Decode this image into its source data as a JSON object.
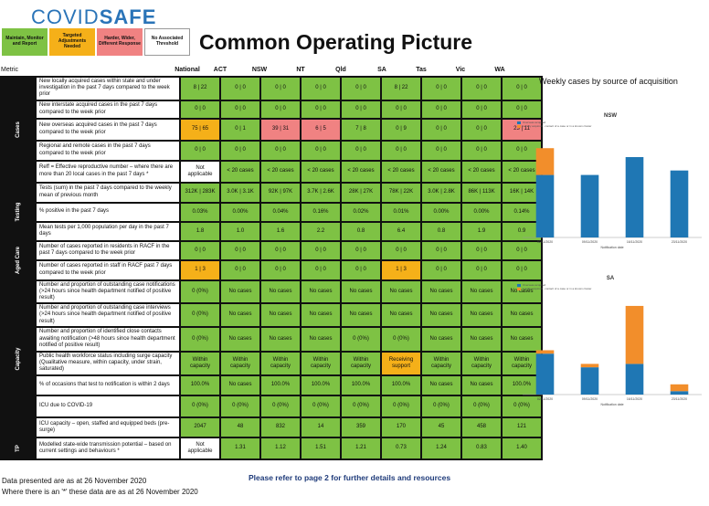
{
  "logo": {
    "part1": "COVID",
    "part2": "SAFE"
  },
  "legend": {
    "l1": "Maintain, Monitor and Report",
    "l2": "Targeted Adjustments Needed",
    "l3": "Harder, Wider, Different Response",
    "l4": "No Associated Threshold"
  },
  "title": "Common Operating Picture",
  "metric_header": "Metric",
  "columns": [
    "National",
    "ACT",
    "NSW",
    "NT",
    "Qld",
    "SA",
    "Tas",
    "Vic",
    "WA"
  ],
  "sections": {
    "cases": "Cases",
    "testing": "Testing",
    "aged": "Aged Care",
    "capacity": "Capacity",
    "tp": "TP"
  },
  "rows": [
    {
      "desc": "New locally acquired cases within state and under investigation in the past 7 days compared to the week prior",
      "vals": [
        "8 | 22",
        "0 | 0",
        "0 | 0",
        "0 | 0",
        "0 | 0",
        "8 | 22",
        "0 | 0",
        "0 | 0",
        "0 | 0"
      ]
    },
    {
      "desc": "New interstate acquired cases in the past 7 days compared to the week prior",
      "vals": [
        "0 | 0",
        "0 | 0",
        "0 | 0",
        "0 | 0",
        "0 | 0",
        "0 | 0",
        "0 | 0",
        "0 | 0",
        "0 | 0"
      ]
    },
    {
      "desc": "New overseas acquired cases in the past 7 days compared to the week prior",
      "vals": [
        "75 | 65",
        "0 | 1",
        "39 | 31",
        "6 | 5",
        "7 | 8",
        "0 | 9",
        "0 | 0",
        "0 | 0",
        "23 | 11"
      ]
    },
    {
      "desc": "Regional and remote cases in the past 7 days compared to the week prior",
      "vals": [
        "0 | 0",
        "0 | 0",
        "0 | 0",
        "0 | 0",
        "0 | 0",
        "0 | 0",
        "0 | 0",
        "0 | 0",
        "0 | 0"
      ]
    },
    {
      "desc": "Reff = Effective reproductive number – where there are more than 20 local cases in the past 7 days *",
      "vals": [
        "Not applicable",
        "< 20 cases",
        "< 20 cases",
        "< 20 cases",
        "< 20 cases",
        "< 20 cases",
        "< 20 cases",
        "< 20 cases",
        "< 20 cases"
      ]
    },
    {
      "desc": "Tests (sum) in the past 7 days compared to the weekly mean of previous month",
      "vals": [
        "312K | 283K",
        "3.0K | 3.1K",
        "92K | 97K",
        "3.7K | 2.6K",
        "28K | 27K",
        "78K | 22K",
        "3.0K | 2.8K",
        "86K | 113K",
        "16K | 14K"
      ]
    },
    {
      "desc": "% positive in the past 7 days",
      "vals": [
        "0.03%",
        "0.00%",
        "0.04%",
        "0.16%",
        "0.02%",
        "0.01%",
        "0.00%",
        "0.00%",
        "0.14%"
      ]
    },
    {
      "desc": "Mean tests per 1,000 population per day in the past 7 days",
      "vals": [
        "1.8",
        "1.0",
        "1.6",
        "2.2",
        "0.8",
        "6.4",
        "0.8",
        "1.9",
        "0.9"
      ]
    },
    {
      "desc": "Number of cases reported in residents in RACF in the past 7 days compared to the week prior",
      "vals": [
        "0 | 0",
        "0 | 0",
        "0 | 0",
        "0 | 0",
        "0 | 0",
        "0 | 0",
        "0 | 0",
        "0 | 0",
        "0 | 0"
      ]
    },
    {
      "desc": "Number of cases reported in staff in RACF past 7 days compared to the week prior",
      "vals": [
        "1 | 3",
        "0 | 0",
        "0 | 0",
        "0 | 0",
        "0 | 0",
        "1 | 3",
        "0 | 0",
        "0 | 0",
        "0 | 0"
      ]
    },
    {
      "desc": "Number and proportion of outstanding case notifications (>24 hours since health department notified of positive result)",
      "vals": [
        "0 (0%)",
        "No cases",
        "No cases",
        "No cases",
        "No cases",
        "No cases",
        "No cases",
        "No cases",
        "No cases"
      ]
    },
    {
      "desc": "Number and proportion of outstanding case interviews (>24 hours since health department notified of positive result)",
      "vals": [
        "0 (0%)",
        "No cases",
        "No cases",
        "No cases",
        "No cases",
        "No cases",
        "No cases",
        "No cases",
        "No cases"
      ]
    },
    {
      "desc": "Number and proportion of identified close contacts awaiting notification (>48 hours since health department notified of positive result)",
      "vals": [
        "0 (0%)",
        "No cases",
        "No cases",
        "No cases",
        "0 (0%)",
        "0 (0%)",
        "No cases",
        "No cases",
        "No cases"
      ]
    },
    {
      "desc": "Public health workforce status including surge capacity (Qualitative measure, within capacity, under strain, saturated)",
      "vals": [
        "Within capacity",
        "Within capacity",
        "Within capacity",
        "Within capacity",
        "Within capacity",
        "Receiving support",
        "Within capacity",
        "Within capacity",
        "Within capacity"
      ]
    },
    {
      "desc": "% of occasions that test to notification is within 2 days",
      "vals": [
        "100.0%",
        "No cases",
        "100.0%",
        "100.0%",
        "100.0%",
        "100.0%",
        "No cases",
        "No cases",
        "100.0%"
      ]
    },
    {
      "desc": "ICU due to COVID-19",
      "vals": [
        "0 (0%)",
        "0 (0%)",
        "0 (0%)",
        "0 (0%)",
        "0 (0%)",
        "0 (0%)",
        "0 (0%)",
        "0 (0%)",
        "0 (0%)"
      ]
    },
    {
      "desc": "ICU capacity – open, staffed and equipped beds (pre-surge)",
      "vals": [
        "2047",
        "48",
        "832",
        "14",
        "359",
        "170",
        "45",
        "458",
        "121"
      ]
    },
    {
      "desc": "Modelled state-wide transmission potential – based on current settings and behaviours *",
      "vals": [
        "Not applicable",
        "1.31",
        "1.12",
        "1.51",
        "1.21",
        "0.73",
        "1.24",
        "0.83",
        "1.40"
      ]
    }
  ],
  "footer": {
    "note1": "Data presented are as at 26 November 2020",
    "note2": "Where there is an '*' these data are as at 26 November 2020",
    "ref": "Please refer to page 2 for further details and resources"
  },
  "right_panel": {
    "title": "Weekly cases by source of acquisition",
    "nsw_title": "NSW",
    "sa_title": "SA",
    "legend_items": [
      "Overseas acquired",
      "Locally acquired - contact not identified",
      "Under investigation",
      "Locally acquired - contact of a case or in a known cluster",
      "Interstate travel"
    ],
    "axis_label": "Notification date",
    "colors": {
      "overseas": "#1f77b4",
      "local": "#f28e2b",
      "other": "#e0b44a"
    }
  },
  "chart_data": [
    {
      "type": "bar",
      "title": "NSW",
      "xlabel": "Notification date",
      "categories": [
        "02/11/2020",
        "09/11/2020",
        "16/11/2020",
        "23/11/2020"
      ],
      "series": [
        {
          "name": "Overseas acquired",
          "values": [
            28,
            28,
            36,
            30
          ]
        },
        {
          "name": "Locally acquired - contact of a case or in a known cluster",
          "values": [
            12,
            0,
            0,
            0
          ]
        }
      ],
      "ylim": [
        0,
        45
      ]
    },
    {
      "type": "bar",
      "title": "SA",
      "xlabel": "Notification date",
      "categories": [
        "02/11/2020",
        "09/11/2020",
        "16/11/2020",
        "23/11/2020"
      ],
      "series": [
        {
          "name": "Overseas acquired",
          "values": [
            12,
            8,
            9,
            1
          ]
        },
        {
          "name": "Locally acquired - contact of a case or in a known cluster",
          "values": [
            1,
            1,
            17,
            2
          ]
        }
      ],
      "ylim": [
        0,
        30
      ]
    }
  ]
}
